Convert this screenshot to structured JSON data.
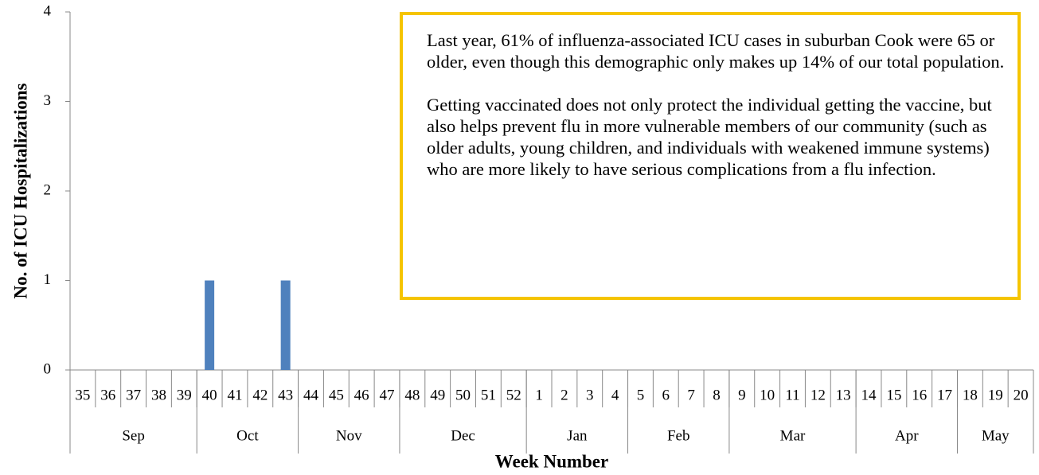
{
  "chart_data": {
    "type": "bar",
    "y_label": "No. of ICU Hospitalizations",
    "x_label": "Week Number",
    "categories": [
      "35",
      "36",
      "37",
      "38",
      "39",
      "40",
      "41",
      "42",
      "43",
      "44",
      "45",
      "46",
      "47",
      "48",
      "49",
      "50",
      "51",
      "52",
      "1",
      "2",
      "3",
      "4",
      "5",
      "6",
      "7",
      "8",
      "9",
      "10",
      "11",
      "12",
      "13",
      "14",
      "15",
      "16",
      "17",
      "18",
      "19",
      "20"
    ],
    "values": [
      0,
      0,
      0,
      0,
      0,
      1,
      0,
      0,
      1,
      0,
      0,
      0,
      0,
      0,
      0,
      0,
      0,
      0,
      0,
      0,
      0,
      0,
      0,
      0,
      0,
      0,
      0,
      0,
      0,
      0,
      0,
      0,
      0,
      0,
      0,
      0,
      0,
      0
    ],
    "groups": [
      {
        "name": "Sep",
        "weeks": 5
      },
      {
        "name": "Oct",
        "weeks": 4
      },
      {
        "name": "Nov",
        "weeks": 4
      },
      {
        "name": "Dec",
        "weeks": 5
      },
      {
        "name": "Jan",
        "weeks": 4
      },
      {
        "name": "Feb",
        "weeks": 4
      },
      {
        "name": "Mar",
        "weeks": 5
      },
      {
        "name": "Apr",
        "weeks": 4
      },
      {
        "name": "May",
        "weeks": 3
      }
    ],
    "color": "#4f81bd",
    "ylim": [
      0,
      4
    ],
    "yticks": [
      0,
      1,
      2,
      3,
      4
    ],
    "annotation": [
      "Last year, 61% of influenza-associated ICU cases in suburban Cook were 65 or older, even though this demographic only makes up 14% of our total population.",
      "Getting vaccinated does not only protect the individual getting the vaccine, but also helps prevent flu in more vulnerable members of our community (such as older adults, young children, and individuals with weakened immune systems) who are more likely to have serious complications from a flu infection."
    ]
  }
}
